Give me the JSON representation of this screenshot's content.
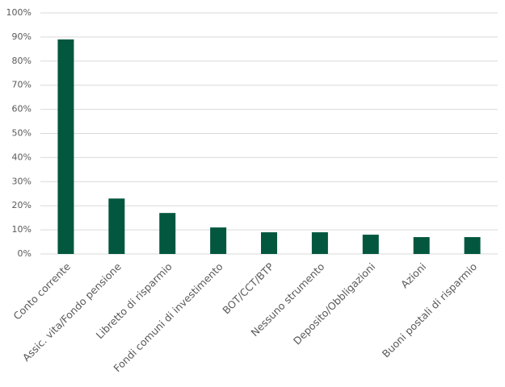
{
  "chart_data": {
    "type": "bar",
    "categories": [
      "Conto corrente",
      "Assic. vita/Fondo pensione",
      "Libretto di risparmio",
      "Fondi comuni di investimento",
      "BOT/CCT/BTP",
      "Nessuno strumento",
      "Deposito/Obbligazioni",
      "Azioni",
      "Buoni postali di risparmio"
    ],
    "values": [
      89,
      23,
      17,
      11,
      9,
      9,
      8,
      7,
      7
    ],
    "color": "#03573f",
    "ylim": [
      0,
      100
    ],
    "yticks": [
      {
        "value": 0,
        "label": "0%"
      },
      {
        "value": 10,
        "label": "10%"
      },
      {
        "value": 20,
        "label": "20%"
      },
      {
        "value": 30,
        "label": "30%"
      },
      {
        "value": 40,
        "label": "40%"
      },
      {
        "value": 50,
        "label": "50%"
      },
      {
        "value": 60,
        "label": "60%"
      },
      {
        "value": 70,
        "label": "70%"
      },
      {
        "value": 80,
        "label": "80%"
      },
      {
        "value": 90,
        "label": "90%"
      },
      {
        "value": 100,
        "label": "100%"
      }
    ],
    "grid": true
  }
}
